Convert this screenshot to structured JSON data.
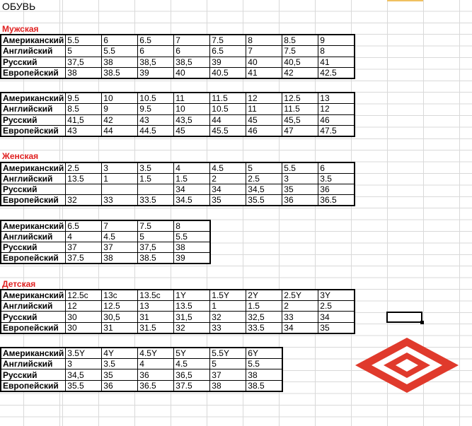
{
  "title": "ОБУВЬ",
  "accent_color": "#e02020",
  "sections": [
    {
      "label": "Мужская",
      "tables": [
        {
          "rows": [
            {
              "header": "Американский",
              "values": [
                "5.5",
                "6",
                "6.5",
                "7",
                "7.5",
                "8",
                "8.5",
                "9"
              ]
            },
            {
              "header": "Английский",
              "values": [
                "5",
                "5.5",
                "6",
                "6",
                "6.5",
                "7",
                "7.5",
                "8"
              ]
            },
            {
              "header": "Русский",
              "values": [
                "37,5",
                "38",
                "38,5",
                "38,5",
                "39",
                "40",
                "40,5",
                "41"
              ]
            },
            {
              "header": "Европейский",
              "values": [
                "38",
                "38.5",
                "39",
                "40",
                "40.5",
                "41",
                "42",
                "42.5"
              ]
            }
          ]
        },
        {
          "rows": [
            {
              "header": "Американский",
              "values": [
                "9.5",
                "10",
                "10.5",
                "11",
                "11.5",
                "12",
                "12.5",
                "13"
              ]
            },
            {
              "header": "Английский",
              "values": [
                "8.5",
                "9",
                "9.5",
                "10",
                "10.5",
                "11",
                "11.5",
                "12"
              ]
            },
            {
              "header": "Русский",
              "values": [
                "41,5",
                "42",
                "43",
                "43,5",
                "44",
                "45",
                "45,5",
                "46"
              ]
            },
            {
              "header": "Европейский",
              "values": [
                "43",
                "44",
                "44.5",
                "45",
                "45.5",
                "46",
                "47",
                "47.5"
              ]
            }
          ]
        }
      ]
    },
    {
      "label": "Женская",
      "tables": [
        {
          "rows": [
            {
              "header": "Американский",
              "values": [
                "2.5",
                "3",
                "3.5",
                "4",
                "4.5",
                "5",
                "5.5",
                "6"
              ]
            },
            {
              "header": "Английский",
              "values": [
                "13.5",
                "1",
                "1.5",
                "1.5",
                "2",
                "2.5",
                "3",
                "3.5"
              ]
            },
            {
              "header": "Русский",
              "values": [
                "",
                "",
                "",
                "34",
                "34",
                "34,5",
                "35",
                "36"
              ]
            },
            {
              "header": "Европейский",
              "values": [
                "32",
                "33",
                "33.5",
                "34.5",
                "35",
                "35.5",
                "36",
                "36.5"
              ]
            }
          ]
        },
        {
          "rows": [
            {
              "header": "Американский",
              "values": [
                "6.5",
                "7",
                "7.5",
                "8"
              ]
            },
            {
              "header": "Английский",
              "values": [
                "4",
                "4.5",
                "5",
                "5.5"
              ]
            },
            {
              "header": "Русский",
              "values": [
                "37",
                "37",
                "37,5",
                "38"
              ]
            },
            {
              "header": "Европейский",
              "values": [
                "37.5",
                "38",
                "38.5",
                "39"
              ]
            }
          ]
        }
      ]
    },
    {
      "label": "Детская",
      "tables": [
        {
          "rows": [
            {
              "header": "Американский",
              "values": [
                "12.5c",
                "13c",
                "13.5c",
                "1Y",
                "1.5Y",
                "2Y",
                "2.5Y",
                "3Y"
              ]
            },
            {
              "header": "Английский",
              "values": [
                "12",
                "12.5",
                "13",
                "13.5",
                "1",
                "1.5",
                "2",
                "2.5"
              ]
            },
            {
              "header": "Русский",
              "values": [
                "30",
                "30,5",
                "31",
                "31,5",
                "32",
                "32,5",
                "33",
                "34"
              ]
            },
            {
              "header": "Европейский",
              "values": [
                "30",
                "31",
                "31.5",
                "32",
                "33",
                "33.5",
                "34",
                "35"
              ]
            }
          ]
        },
        {
          "rows": [
            {
              "header": "Американский",
              "values": [
                "3.5Y",
                "4Y",
                "4.5Y",
                "5Y",
                "5.5Y",
                "6Y"
              ]
            },
            {
              "header": "Английский",
              "values": [
                "3",
                "3.5",
                "4",
                "4.5",
                "5",
                "5.5"
              ]
            },
            {
              "header": "Русский",
              "values": [
                "34,5",
                "35",
                "36",
                "36,5",
                "37",
                "38"
              ]
            },
            {
              "header": "Европейский",
              "values": [
                "35.5",
                "36",
                "36.5",
                "37.5",
                "38",
                "38.5"
              ]
            }
          ]
        }
      ]
    }
  ],
  "logo": {
    "icon": "diamond-logo",
    "color": "#e03a2c"
  }
}
